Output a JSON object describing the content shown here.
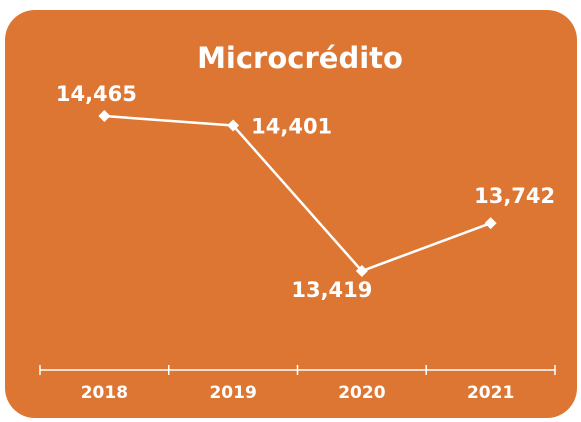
{
  "chart_data": {
    "type": "line",
    "title": "Microcrédito",
    "categories": [
      "2018",
      "2019",
      "2020",
      "2021"
    ],
    "values": [
      14465,
      14401,
      13419,
      13742
    ],
    "value_labels": [
      "14,465",
      "14,401",
      "13,419",
      "13,742"
    ],
    "color": "#ffffff",
    "background": "#de7633",
    "ylim": [
      12800,
      14800
    ]
  }
}
